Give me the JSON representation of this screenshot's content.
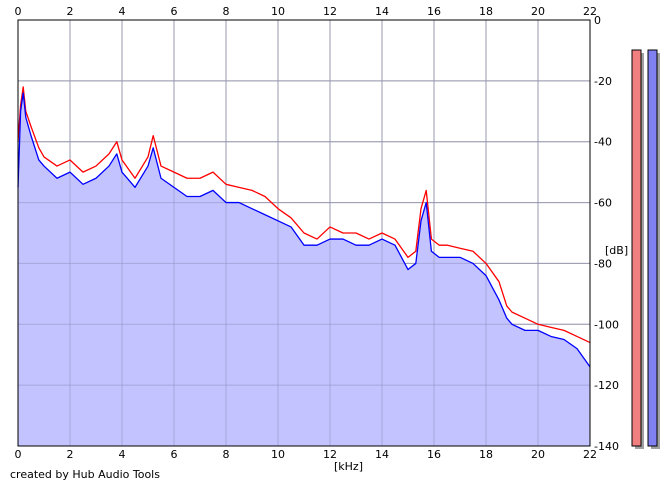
{
  "footer_text": "created by Hub Audio Tools",
  "chart_data": {
    "type": "area",
    "x_unit": "[kHz]",
    "y_unit": "[dB]",
    "xlim": [
      0,
      22
    ],
    "ylim": [
      -140,
      0
    ],
    "x_ticks": [
      0,
      2,
      4,
      6,
      8,
      10,
      12,
      14,
      16,
      18,
      20,
      22
    ],
    "y_ticks": [
      0,
      -20,
      -40,
      -60,
      -80,
      -100,
      -120,
      -140
    ],
    "x_tick_labels": [
      "0",
      "2",
      "4",
      "6",
      "8",
      "10",
      "12",
      "14",
      "16",
      "18",
      "20",
      "22"
    ],
    "y_tick_labels": [
      "0",
      "-20",
      "-40",
      "-60",
      "-80",
      "-100",
      "-120",
      "-140"
    ],
    "grid": true,
    "fill_color": "#c0c0ff",
    "series": [
      {
        "color": "#ff0000",
        "x": [
          0,
          0.1,
          0.2,
          0.3,
          0.5,
          0.8,
          1.0,
          1.5,
          2.0,
          2.5,
          3.0,
          3.5,
          3.8,
          4.0,
          4.5,
          5.0,
          5.2,
          5.5,
          6.0,
          6.5,
          7.0,
          7.5,
          8.0,
          8.5,
          9.0,
          9.5,
          10.0,
          10.5,
          11.0,
          11.5,
          12.0,
          12.5,
          13.0,
          13.5,
          14.0,
          14.5,
          15.0,
          15.3,
          15.5,
          15.7,
          15.9,
          16.2,
          16.5,
          17.0,
          17.5,
          18.0,
          18.5,
          18.8,
          19.0,
          19.5,
          20.0,
          20.5,
          21.0,
          21.5,
          22.0
        ],
        "y": [
          -40,
          -28,
          -22,
          -30,
          -35,
          -42,
          -45,
          -48,
          -46,
          -50,
          -48,
          -44,
          -40,
          -46,
          -52,
          -45,
          -38,
          -48,
          -50,
          -52,
          -52,
          -50,
          -54,
          -55,
          -56,
          -58,
          -62,
          -65,
          -70,
          -72,
          -68,
          -70,
          -70,
          -72,
          -70,
          -72,
          -78,
          -76,
          -62,
          -56,
          -72,
          -74,
          -74,
          -75,
          -76,
          -80,
          -86,
          -94,
          -96,
          -98,
          -100,
          -101,
          -102,
          -104,
          -106
        ]
      },
      {
        "color": "#0000ff",
        "x": [
          0,
          0.1,
          0.2,
          0.3,
          0.5,
          0.8,
          1.0,
          1.5,
          2.0,
          2.5,
          3.0,
          3.5,
          3.8,
          4.0,
          4.5,
          5.0,
          5.2,
          5.5,
          6.0,
          6.5,
          7.0,
          7.5,
          8.0,
          8.5,
          9.0,
          9.5,
          10.0,
          10.5,
          11.0,
          11.5,
          12.0,
          12.5,
          13.0,
          13.5,
          14.0,
          14.5,
          15.0,
          15.3,
          15.5,
          15.7,
          15.9,
          16.2,
          16.5,
          17.0,
          17.5,
          18.0,
          18.5,
          18.8,
          19.0,
          19.5,
          20.0,
          20.5,
          21.0,
          21.5,
          22.0
        ],
        "y": [
          -55,
          -30,
          -24,
          -32,
          -38,
          -46,
          -48,
          -52,
          -50,
          -54,
          -52,
          -48,
          -44,
          -50,
          -55,
          -48,
          -42,
          -52,
          -55,
          -58,
          -58,
          -56,
          -60,
          -60,
          -62,
          -64,
          -66,
          -68,
          -74,
          -74,
          -72,
          -72,
          -74,
          -74,
          -72,
          -74,
          -82,
          -80,
          -66,
          -60,
          -76,
          -78,
          -78,
          -78,
          -80,
          -84,
          -92,
          -98,
          -100,
          -102,
          -102,
          -104,
          -105,
          -108,
          -114
        ]
      }
    ]
  }
}
